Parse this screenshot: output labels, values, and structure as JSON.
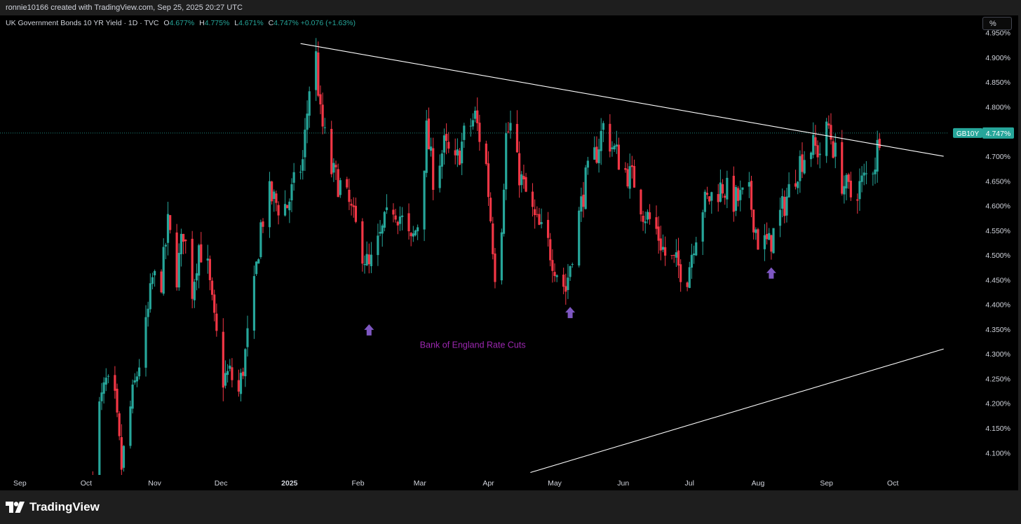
{
  "header": {
    "credit": "ronnie10166 created with TradingView.com, Sep 25, 2025 20:27 UTC"
  },
  "legend": {
    "symbol": "UK Government Bonds 10 YR Yield · 1D · TVC",
    "o_label": "O",
    "o_value": "4.677%",
    "h_label": "H",
    "h_value": "4.775%",
    "l_label": "L",
    "l_value": "4.671%",
    "c_label": "C",
    "c_value": "4.747%",
    "change": "+0.076 (+1.63%)"
  },
  "scale_button": "%",
  "footer": {
    "brand": "TradingView",
    "icon": "tradingview-logo-icon"
  },
  "colors": {
    "up": "#26a69a",
    "down": "#f23645",
    "annotation": "#9c27b0",
    "trendline": "#ffffff",
    "background": "#000000"
  },
  "chart_data": {
    "type": "candlestick",
    "title": "",
    "y_unit": "%",
    "ylim": [
      4.055,
      4.985
    ],
    "yticks": [
      "4.950%",
      "4.900%",
      "4.850%",
      "4.800%",
      "4.750%",
      "4.700%",
      "4.650%",
      "4.600%",
      "4.550%",
      "4.500%",
      "4.450%",
      "4.400%",
      "4.350%",
      "4.300%",
      "4.250%",
      "4.200%",
      "4.150%",
      "4.100%"
    ],
    "ytick_values": [
      4.95,
      4.9,
      4.85,
      4.8,
      4.75,
      4.7,
      4.65,
      4.6,
      4.55,
      4.5,
      4.45,
      4.4,
      4.35,
      4.3,
      4.25,
      4.2,
      4.15,
      4.1
    ],
    "x_range": [
      "2024-08-23",
      "2025-10-26"
    ],
    "xticks": [
      {
        "label": "Sep",
        "date": "2024-09-01"
      },
      {
        "label": "Oct",
        "date": "2024-10-01"
      },
      {
        "label": "Nov",
        "date": "2024-11-01"
      },
      {
        "label": "Dec",
        "date": "2024-12-01"
      },
      {
        "label": "2025",
        "date": "2025-01-01"
      },
      {
        "label": "Feb",
        "date": "2025-02-01"
      },
      {
        "label": "Mar",
        "date": "2025-03-01"
      },
      {
        "label": "Apr",
        "date": "2025-04-01"
      },
      {
        "label": "May",
        "date": "2025-05-01"
      },
      {
        "label": "Jun",
        "date": "2025-06-01"
      },
      {
        "label": "Jul",
        "date": "2025-07-01"
      },
      {
        "label": "Aug",
        "date": "2025-08-01"
      },
      {
        "label": "Sep",
        "date": "2025-09-01"
      },
      {
        "label": "Oct",
        "date": "2025-10-01"
      }
    ],
    "price_label": {
      "symbol": "GB10Y",
      "value": "4.747%",
      "y": 4.747
    },
    "last_price_line": 4.747,
    "grid": false,
    "keypoints": [
      [
        "2024-10-04",
        4.05
      ],
      [
        "2024-10-07",
        4.19
      ],
      [
        "2024-10-10",
        4.24
      ],
      [
        "2024-10-14",
        4.2
      ],
      [
        "2024-10-17",
        4.07
      ],
      [
        "2024-10-21",
        4.19
      ],
      [
        "2024-10-24",
        4.26
      ],
      [
        "2024-10-28",
        4.35
      ],
      [
        "2024-10-31",
        4.45
      ],
      [
        "2024-11-04",
        4.45
      ],
      [
        "2024-11-07",
        4.56
      ],
      [
        "2024-11-11",
        4.46
      ],
      [
        "2024-11-14",
        4.55
      ],
      [
        "2024-11-18",
        4.43
      ],
      [
        "2024-11-21",
        4.52
      ],
      [
        "2024-11-25",
        4.47
      ],
      [
        "2024-11-28",
        4.36
      ],
      [
        "2024-12-02",
        4.25
      ],
      [
        "2024-12-05",
        4.26
      ],
      [
        "2024-12-09",
        4.22
      ],
      [
        "2024-12-12",
        4.3
      ],
      [
        "2024-12-16",
        4.43
      ],
      [
        "2024-12-19",
        4.56
      ],
      [
        "2024-12-23",
        4.62
      ],
      [
        "2024-12-27",
        4.6
      ],
      [
        "2024-12-31",
        4.6
      ],
      [
        "2025-01-03",
        4.64
      ],
      [
        "2025-01-07",
        4.69
      ],
      [
        "2025-01-10",
        4.84
      ],
      [
        "2025-01-13",
        4.9
      ],
      [
        "2025-01-15",
        4.78
      ],
      [
        "2025-01-20",
        4.67
      ],
      [
        "2025-01-24",
        4.64
      ],
      [
        "2025-01-28",
        4.6
      ],
      [
        "2025-02-03",
        4.51
      ],
      [
        "2025-02-06",
        4.47
      ],
      [
        "2025-02-10",
        4.52
      ],
      [
        "2025-02-13",
        4.56
      ],
      [
        "2025-02-17",
        4.6
      ],
      [
        "2025-02-20",
        4.58
      ],
      [
        "2025-02-25",
        4.52
      ],
      [
        "2025-03-01",
        4.58
      ],
      [
        "2025-03-04",
        4.75
      ],
      [
        "2025-03-07",
        4.66
      ],
      [
        "2025-03-12",
        4.72
      ],
      [
        "2025-03-17",
        4.68
      ],
      [
        "2025-03-21",
        4.74
      ],
      [
        "2025-03-26",
        4.78
      ],
      [
        "2025-03-31",
        4.68
      ],
      [
        "2025-04-04",
        4.47
      ],
      [
        "2025-04-07",
        4.57
      ],
      [
        "2025-04-09",
        4.74
      ],
      [
        "2025-04-11",
        4.76
      ],
      [
        "2025-04-14",
        4.68
      ],
      [
        "2025-04-16",
        4.65
      ],
      [
        "2025-04-22",
        4.57
      ],
      [
        "2025-04-28",
        4.52
      ],
      [
        "2025-05-02",
        4.47
      ],
      [
        "2025-05-06",
        4.43
      ],
      [
        "2025-05-09",
        4.51
      ],
      [
        "2025-05-12",
        4.58
      ],
      [
        "2025-05-15",
        4.65
      ],
      [
        "2025-05-20",
        4.71
      ],
      [
        "2025-05-23",
        4.76
      ],
      [
        "2025-05-27",
        4.72
      ],
      [
        "2025-06-02",
        4.67
      ],
      [
        "2025-06-06",
        4.65
      ],
      [
        "2025-06-10",
        4.59
      ],
      [
        "2025-06-16",
        4.55
      ],
      [
        "2025-06-20",
        4.5
      ],
      [
        "2025-06-25",
        4.48
      ],
      [
        "2025-06-30",
        4.46
      ],
      [
        "2025-07-03",
        4.53
      ],
      [
        "2025-07-07",
        4.6
      ],
      [
        "2025-07-11",
        4.62
      ],
      [
        "2025-07-16",
        4.64
      ],
      [
        "2025-07-21",
        4.61
      ],
      [
        "2025-07-28",
        4.62
      ],
      [
        "2025-08-01",
        4.53
      ],
      [
        "2025-08-06",
        4.52
      ],
      [
        "2025-08-11",
        4.58
      ],
      [
        "2025-08-15",
        4.63
      ],
      [
        "2025-08-20",
        4.69
      ],
      [
        "2025-08-25",
        4.72
      ],
      [
        "2025-08-29",
        4.71
      ],
      [
        "2025-09-02",
        4.76
      ],
      [
        "2025-09-04",
        4.72
      ],
      [
        "2025-09-08",
        4.65
      ],
      [
        "2025-09-12",
        4.62
      ],
      [
        "2025-09-16",
        4.64
      ],
      [
        "2025-09-19",
        4.66
      ],
      [
        "2025-09-23",
        4.69
      ],
      [
        "2025-09-25",
        4.747
      ]
    ],
    "annotations": {
      "trendlines": [
        {
          "name": "upper-trendline",
          "from": [
            "2025-01-06",
            4.928
          ],
          "to": [
            "2025-10-24",
            4.7
          ]
        },
        {
          "name": "lower-trendline",
          "from": [
            "2025-04-20",
            4.06
          ],
          "to": [
            "2025-10-24",
            4.31
          ]
        }
      ],
      "arrows": [
        {
          "name": "rate-cut-arrow-feb",
          "date": "2025-02-06",
          "y": 4.36
        },
        {
          "name": "rate-cut-arrow-may",
          "date": "2025-05-08",
          "y": 4.395
        },
        {
          "name": "rate-cut-arrow-aug",
          "date": "2025-08-07",
          "y": 4.475
        }
      ],
      "text": {
        "label": "Bank of England Rate Cuts",
        "date": "2025-03-01",
        "y": 4.312
      }
    }
  }
}
